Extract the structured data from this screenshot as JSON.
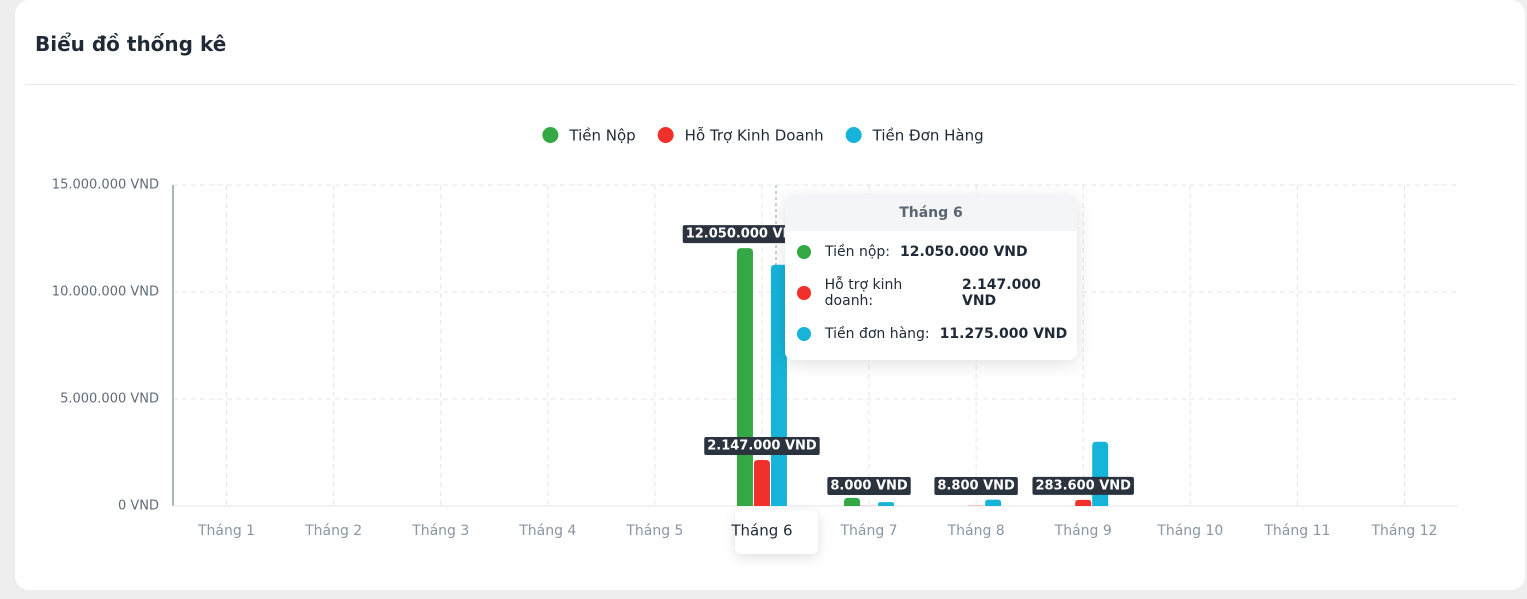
{
  "header": {
    "title": "Biểu đồ thống kê"
  },
  "chart_data": {
    "type": "bar",
    "categories": [
      "Tháng 1",
      "Tháng 2",
      "Tháng 3",
      "Tháng 4",
      "Tháng 5",
      "Tháng 6",
      "Tháng 7",
      "Tháng 8",
      "Tháng 9",
      "Tháng 10",
      "Tháng 11",
      "Tháng 12"
    ],
    "series": [
      {
        "name": "Tiền Nộp",
        "color": "#35a846",
        "values": [
          0,
          0,
          0,
          0,
          0,
          12050000,
          380000,
          0,
          0,
          0,
          0,
          0
        ],
        "value_labels": [
          null,
          null,
          null,
          null,
          null,
          "12.050.000 VND",
          null,
          null,
          null,
          null,
          null,
          null
        ]
      },
      {
        "name": "Hỗ Trợ Kinh Doanh",
        "color": "#f2302b",
        "values": [
          0,
          0,
          0,
          0,
          0,
          2147000,
          8000,
          8800,
          283600,
          0,
          0,
          0
        ],
        "value_labels": [
          null,
          null,
          null,
          null,
          null,
          "2.147.000 VND",
          "8.000 VND",
          "8.800 VND",
          "283.600 VND",
          null,
          null,
          null
        ]
      },
      {
        "name": "Tiền Đơn Hàng",
        "color": "#15b4d8",
        "values": [
          0,
          0,
          0,
          0,
          0,
          11275000,
          180000,
          300000,
          3000000,
          0,
          0,
          0
        ],
        "value_labels": [
          null,
          null,
          null,
          null,
          null,
          null,
          null,
          null,
          null,
          null,
          null,
          null
        ]
      }
    ],
    "ylim": [
      0,
      15000000
    ],
    "yticks": [
      {
        "value": 0,
        "label": "0 VND"
      },
      {
        "value": 5000000,
        "label": "5.000.000 VND"
      },
      {
        "value": 10000000,
        "label": "10.000.000 VND"
      },
      {
        "value": 15000000,
        "label": "15.000.000 VND"
      }
    ],
    "grid": true
  },
  "tooltip": {
    "title": "Tháng 6",
    "items": [
      {
        "label": "Tiền nộp:",
        "value": "12.050.000 VND",
        "color": "#35a846"
      },
      {
        "label": "Hỗ trợ kinh doanh:",
        "value": "2.147.000 VND",
        "color": "#f2302b"
      },
      {
        "label": "Tiền đơn hàng:",
        "value": "11.275.000 VND",
        "color": "#15b4d8"
      }
    ]
  }
}
